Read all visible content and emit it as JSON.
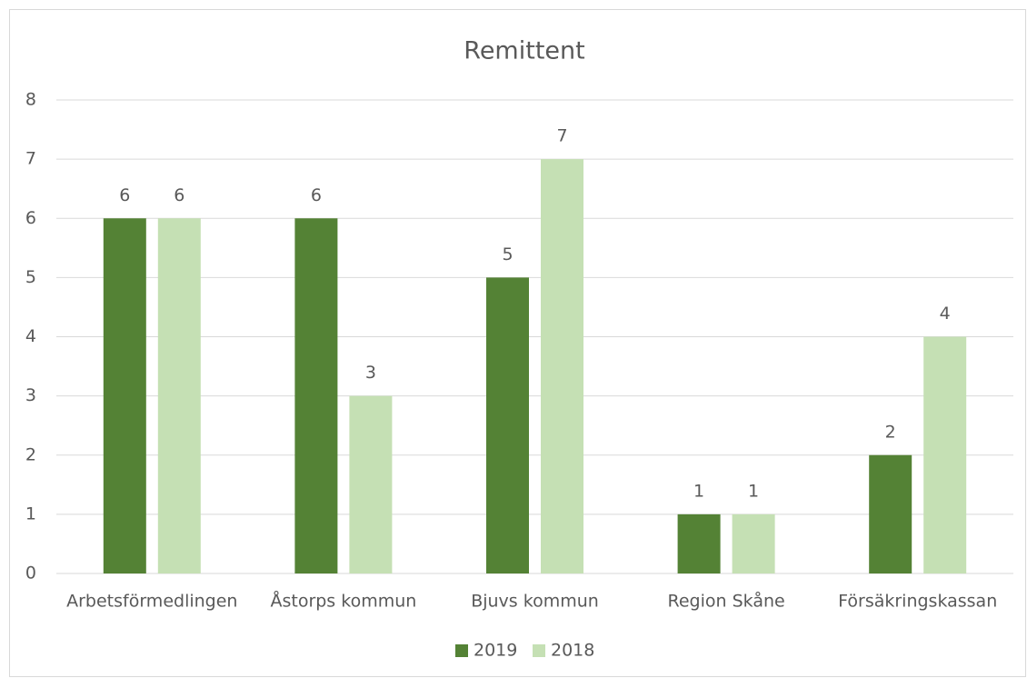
{
  "chart_data": {
    "type": "bar",
    "title": "Remittent",
    "categories": [
      "Arbetsförmedlingen",
      "Åstorps kommun",
      "Bjuvs kommun",
      "Region Skåne",
      "Försäkringskassan"
    ],
    "series": [
      {
        "name": "2019",
        "color": "#548235",
        "values": [
          6,
          6,
          5,
          1,
          2
        ]
      },
      {
        "name": "2018",
        "color": "#c5e0b4",
        "values": [
          6,
          3,
          7,
          1,
          4
        ]
      }
    ],
    "ylim": [
      0,
      8
    ],
    "yticks": [
      0,
      1,
      2,
      3,
      4,
      5,
      6,
      7,
      8
    ],
    "grid": true,
    "legend": "bottom"
  }
}
